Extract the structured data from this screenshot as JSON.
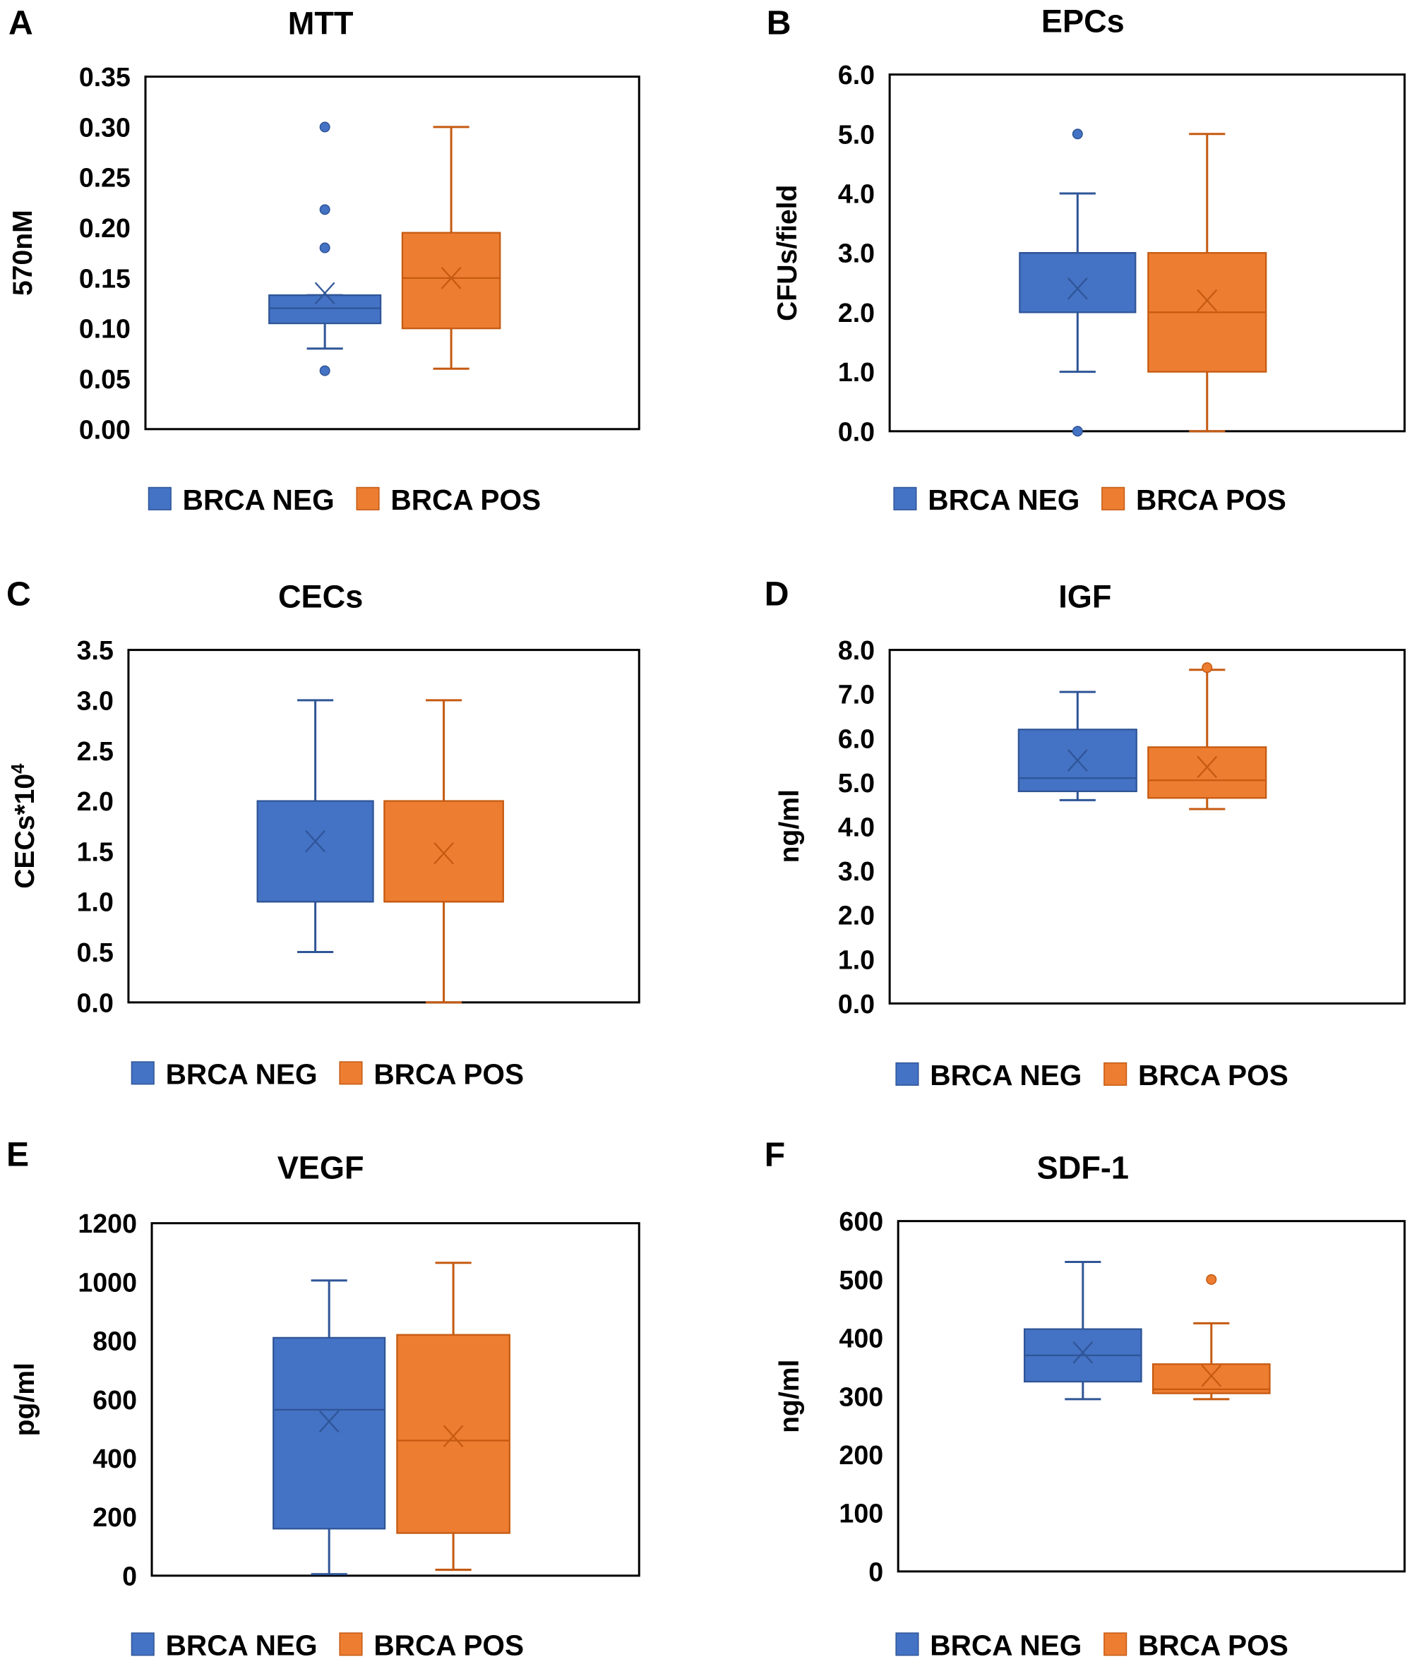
{
  "colors": {
    "neg": "#4472C4",
    "neg_stroke": "#2F5597",
    "pos": "#ED7D31",
    "pos_stroke": "#C55A11",
    "frame": "#000000"
  },
  "legend": [
    "BRCA NEG",
    "BRCA POS"
  ],
  "chart_data": [
    {
      "type": "box",
      "panel": "A",
      "title": "MTT",
      "ylabel": "570nM",
      "ylim": [
        0,
        0.35
      ],
      "yticks": [
        "0.00",
        "0.05",
        "0.10",
        "0.15",
        "0.20",
        "0.25",
        "0.30",
        "0.35"
      ],
      "tick_step": 0.05,
      "series": [
        {
          "name": "BRCA NEG",
          "q1": 0.105,
          "median": 0.12,
          "q3": 0.133,
          "mean": 0.135,
          "whisker_low": 0.08,
          "whisker_high": 0.133,
          "outliers": [
            0.3,
            0.218,
            0.18,
            0.058
          ]
        },
        {
          "name": "BRCA POS",
          "q1": 0.1,
          "median": 0.15,
          "q3": 0.195,
          "mean": 0.15,
          "whisker_low": 0.06,
          "whisker_high": 0.3,
          "outliers": []
        }
      ]
    },
    {
      "type": "box",
      "panel": "B",
      "title": "EPCs",
      "ylabel": "CFUs/field",
      "ylim": [
        0,
        6
      ],
      "yticks": [
        "0.0",
        "1.0",
        "2.0",
        "3.0",
        "4.0",
        "5.0",
        "6.0"
      ],
      "tick_step": 1,
      "series": [
        {
          "name": "BRCA NEG",
          "q1": 2,
          "median": 3,
          "q3": 3,
          "mean": 2.4,
          "whisker_low": 1,
          "whisker_high": 4,
          "outliers": [
            5,
            0
          ]
        },
        {
          "name": "BRCA POS",
          "q1": 1,
          "median": 2,
          "q3": 3,
          "mean": 2.2,
          "whisker_low": 0,
          "whisker_high": 5,
          "outliers": []
        }
      ]
    },
    {
      "type": "box",
      "panel": "C",
      "title": "CECs",
      "ylabel": "CECs*10",
      "ylabel_sup": "4",
      "ylim": [
        0,
        3.5
      ],
      "yticks": [
        "0.0",
        "0.5",
        "1.0",
        "1.5",
        "2.0",
        "2.5",
        "3.0",
        "3.5"
      ],
      "tick_step": 0.5,
      "series": [
        {
          "name": "BRCA NEG",
          "q1": 1,
          "median": 1,
          "q3": 2,
          "mean": 1.6,
          "whisker_low": 0.5,
          "whisker_high": 3,
          "outliers": []
        },
        {
          "name": "BRCA POS",
          "q1": 1,
          "median": 1,
          "q3": 2,
          "mean": 1.48,
          "whisker_low": 0,
          "whisker_high": 3,
          "outliers": []
        }
      ]
    },
    {
      "type": "box",
      "panel": "D",
      "title": "IGF",
      "ylabel": "ng/ml",
      "ylim": [
        0,
        8
      ],
      "yticks": [
        "0.0",
        "1.0",
        "2.0",
        "3.0",
        "4.0",
        "5.0",
        "6.0",
        "7.0",
        "8.0"
      ],
      "tick_step": 1,
      "series": [
        {
          "name": "BRCA NEG",
          "q1": 4.8,
          "median": 5.1,
          "q3": 6.2,
          "mean": 5.5,
          "whisker_low": 4.6,
          "whisker_high": 7.05,
          "outliers": []
        },
        {
          "name": "BRCA POS",
          "q1": 4.65,
          "median": 5.05,
          "q3": 5.8,
          "mean": 5.35,
          "whisker_low": 4.4,
          "whisker_high": 7.55,
          "outliers": [
            7.6
          ]
        }
      ]
    },
    {
      "type": "box",
      "panel": "E",
      "title": "VEGF",
      "ylabel": "pg/ml",
      "ylim": [
        0,
        1200
      ],
      "yticks": [
        "0",
        "200",
        "400",
        "600",
        "800",
        "1000",
        "1200"
      ],
      "tick_step": 200,
      "series": [
        {
          "name": "BRCA NEG",
          "q1": 160,
          "median": 565,
          "q3": 810,
          "mean": 525,
          "whisker_low": 5,
          "whisker_high": 1005,
          "outliers": []
        },
        {
          "name": "BRCA POS",
          "q1": 145,
          "median": 460,
          "q3": 820,
          "mean": 475,
          "whisker_low": 20,
          "whisker_high": 1065,
          "outliers": []
        }
      ]
    },
    {
      "type": "box",
      "panel": "F",
      "title": "SDF-1",
      "ylabel": "ng/ml",
      "ylim": [
        0,
        600
      ],
      "yticks": [
        "0",
        "100",
        "200",
        "300",
        "400",
        "500",
        "600"
      ],
      "tick_step": 100,
      "series": [
        {
          "name": "BRCA NEG",
          "q1": 325,
          "median": 370,
          "q3": 415,
          "mean": 375,
          "whisker_low": 295,
          "whisker_high": 530,
          "outliers": []
        },
        {
          "name": "BRCA POS",
          "q1": 305,
          "median": 312,
          "q3": 355,
          "mean": 335,
          "whisker_low": 295,
          "whisker_high": 425,
          "outliers": [
            500
          ]
        }
      ]
    }
  ]
}
